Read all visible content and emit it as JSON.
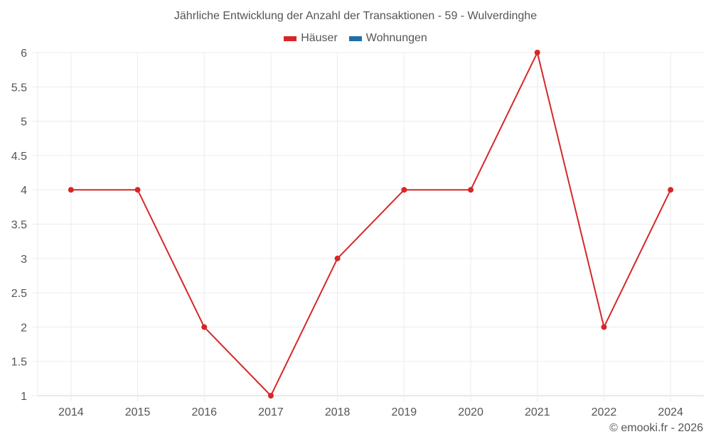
{
  "chart_data": {
    "type": "line",
    "title": "Jährliche Entwicklung der Anzahl der Transaktionen - 59 - Wulverdinghe",
    "categories": [
      "2014",
      "2015",
      "2016",
      "2017",
      "2018",
      "2019",
      "2020",
      "2021",
      "2022",
      "2024"
    ],
    "series": [
      {
        "name": "Häuser",
        "color": "#d62728",
        "values": [
          4,
          4,
          2,
          1,
          3,
          4,
          4,
          6,
          2,
          4
        ]
      },
      {
        "name": "Wohnungen",
        "color": "#1f6fa8",
        "values": []
      }
    ],
    "xlabel": "",
    "ylabel": "",
    "ylim": [
      1,
      6
    ],
    "yticks": [
      "1",
      "1.5",
      "2",
      "2.5",
      "3",
      "3.5",
      "4",
      "4.5",
      "5",
      "5.5",
      "6"
    ],
    "grid": true,
    "legend_position": "top"
  },
  "credit": "© emooki.fr - 2026"
}
